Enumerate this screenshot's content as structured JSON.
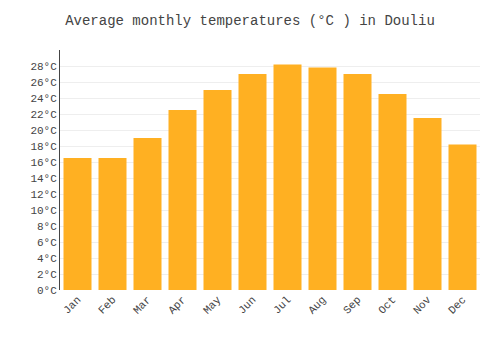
{
  "chart_data": {
    "type": "bar",
    "title": "Average monthly temperatures (°C ) in Douliu",
    "categories": [
      "Jan",
      "Feb",
      "Mar",
      "Apr",
      "May",
      "Jun",
      "Jul",
      "Aug",
      "Sep",
      "Oct",
      "Nov",
      "Dec"
    ],
    "values": [
      16.5,
      16.5,
      19.0,
      22.5,
      25.0,
      27.0,
      28.2,
      27.8,
      27.0,
      24.5,
      21.5,
      18.2
    ],
    "color": "#FFB022",
    "ylim": [
      0,
      30
    ],
    "yticks": [
      {
        "value": 0,
        "label": "0°C"
      },
      {
        "value": 2,
        "label": "2°C"
      },
      {
        "value": 4,
        "label": "4°C"
      },
      {
        "value": 6,
        "label": "6°C"
      },
      {
        "value": 8,
        "label": "8°C"
      },
      {
        "value": 10,
        "label": "10°C"
      },
      {
        "value": 12,
        "label": "12°C"
      },
      {
        "value": 14,
        "label": "14°C"
      },
      {
        "value": 16,
        "label": "16°C"
      },
      {
        "value": 18,
        "label": "18°C"
      },
      {
        "value": 20,
        "label": "20°C"
      },
      {
        "value": 22,
        "label": "22°C"
      },
      {
        "value": 24,
        "label": "24°C"
      },
      {
        "value": 26,
        "label": "26°C"
      },
      {
        "value": 28,
        "label": "28°C"
      }
    ],
    "grid": true
  }
}
